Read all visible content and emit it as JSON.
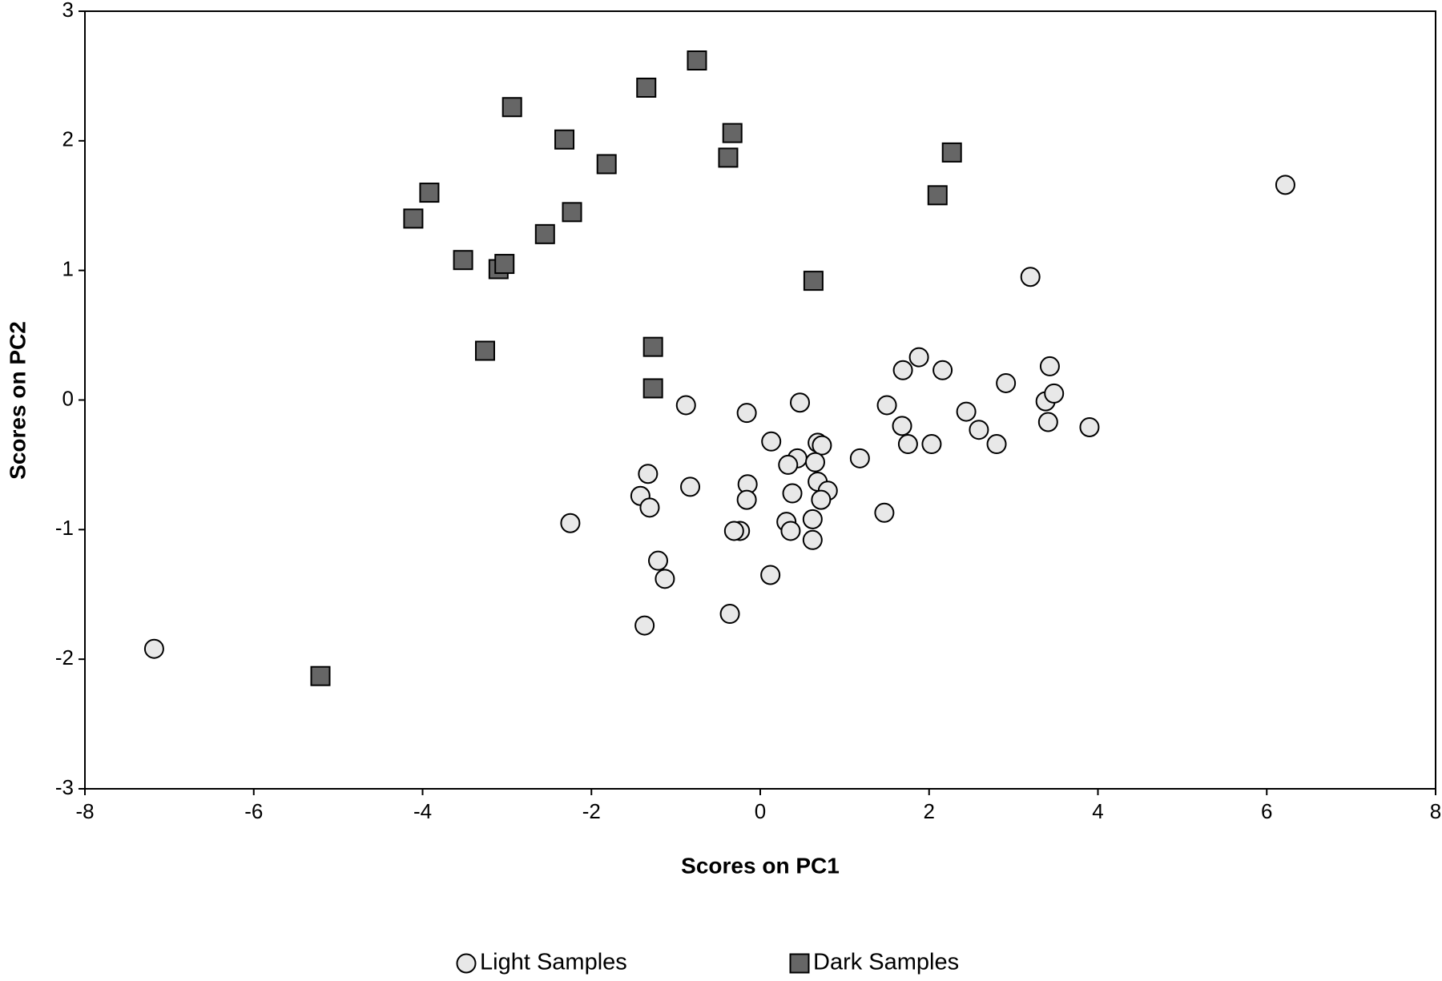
{
  "chart_data": {
    "type": "scatter",
    "xlabel": "Scores on PC1",
    "ylabel": "Scores on PC2",
    "xlim": [
      -8,
      8
    ],
    "xticks": [
      -8,
      -6,
      -4,
      -2,
      0,
      2,
      4,
      6,
      8
    ],
    "ylim": [
      -3,
      3
    ],
    "yticks": [
      -3,
      -2,
      -1,
      0,
      1,
      2,
      3
    ],
    "grid": false,
    "legend": "bottom",
    "series": [
      {
        "name": "Light Samples",
        "color": "#e8e8e8",
        "marker": "circle",
        "x": [
          -7.18,
          6.22,
          3.2,
          1.88,
          1.69,
          2.16,
          3.43,
          2.91,
          3.38,
          3.48,
          3.41,
          3.9,
          2.44,
          2.59,
          2.8,
          2.03,
          1.75,
          1.68,
          1.5,
          1.18,
          1.47,
          0.47,
          0.68,
          0.73,
          0.44,
          0.33,
          0.65,
          0.68,
          0.8,
          0.38,
          0.72,
          0.13,
          -0.16,
          -0.88,
          -0.15,
          -0.16,
          -0.83,
          -1.33,
          -1.42,
          -1.31,
          -2.25,
          0.31,
          0.62,
          0.36,
          -0.24,
          -0.31,
          0.62,
          -1.21,
          -1.13,
          0.12,
          -0.36,
          -1.37
        ],
        "values": [
          -1.92,
          1.66,
          0.95,
          0.33,
          0.23,
          0.23,
          0.26,
          0.13,
          -0.01,
          0.05,
          -0.17,
          -0.21,
          -0.09,
          -0.23,
          -0.34,
          -0.34,
          -0.34,
          -0.2,
          -0.04,
          -0.45,
          -0.87,
          -0.02,
          -0.33,
          -0.35,
          -0.45,
          -0.5,
          -0.48,
          -0.63,
          -0.7,
          -0.72,
          -0.77,
          -0.32,
          -0.1,
          -0.04,
          -0.65,
          -0.77,
          -0.67,
          -0.57,
          -0.74,
          -0.83,
          -0.95,
          -0.94,
          -0.92,
          -1.01,
          -1.01,
          -1.01,
          -1.08,
          -1.24,
          -1.38,
          -1.35,
          -1.65,
          -1.74
        ]
      },
      {
        "name": "Dark Samples",
        "color": "#666666",
        "marker": "square",
        "x": [
          -0.75,
          -1.35,
          -2.94,
          -2.32,
          -0.33,
          -0.38,
          -1.82,
          2.27,
          2.1,
          -3.92,
          -4.11,
          -2.23,
          -2.55,
          -3.52,
          -3.1,
          -3.03,
          0.63,
          -1.27,
          -3.26,
          -1.27,
          -5.21
        ],
        "values": [
          2.62,
          2.41,
          2.26,
          2.01,
          2.06,
          1.87,
          1.82,
          1.91,
          1.58,
          1.6,
          1.4,
          1.45,
          1.28,
          1.08,
          1.01,
          1.05,
          0.92,
          0.41,
          0.38,
          0.09,
          -2.13
        ]
      }
    ]
  }
}
